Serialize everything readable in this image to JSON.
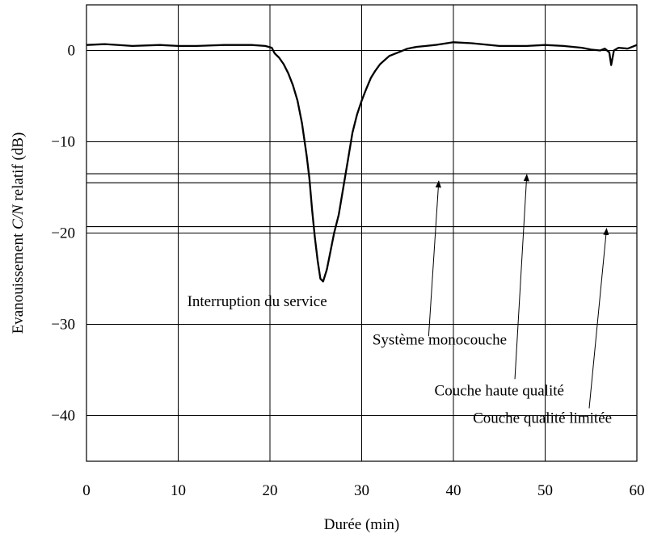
{
  "chart_data": {
    "type": "line",
    "xlabel": "Durée (min)",
    "ylabel_parts": [
      "Evanouissement ",
      "C/N",
      " relatif (dB)"
    ],
    "xlim": [
      0,
      60
    ],
    "ylim": [
      -45,
      5
    ],
    "x_ticks": [
      0,
      10,
      20,
      30,
      40,
      50,
      60
    ],
    "y_ticks": [
      0,
      -10,
      -20,
      -30,
      -40
    ],
    "x_tick_labels": [
      "0",
      "10",
      "20",
      "30",
      "40",
      "50",
      "60"
    ],
    "y_tick_labels": [
      "0",
      "−10",
      "−20",
      "−30",
      "−40"
    ],
    "grid": true,
    "series": [
      {
        "x": [
          0,
          2,
          5,
          8,
          10,
          12,
          15,
          18,
          19.5,
          20.2,
          20.5,
          21,
          21.5,
          22,
          22.5,
          23,
          23.5,
          24,
          24.3,
          24.6,
          24.9,
          25.2,
          25.5,
          25.8,
          26.2,
          26.6,
          27,
          27.5,
          28,
          28.5,
          29,
          29.5,
          30,
          30.5,
          31,
          31.5,
          32,
          33,
          34,
          35,
          36,
          37,
          38,
          40,
          42,
          45,
          48,
          50,
          52,
          54,
          55,
          56,
          56.5,
          57,
          57.2,
          57.5,
          58,
          59,
          60
        ],
        "y": [
          0.6,
          0.7,
          0.5,
          0.6,
          0.5,
          0.5,
          0.6,
          0.6,
          0.5,
          0.3,
          -0.3,
          -0.8,
          -1.5,
          -2.5,
          -3.8,
          -5.5,
          -8.0,
          -11.5,
          -14.0,
          -17.5,
          -20.5,
          -23.0,
          -25.0,
          -25.3,
          -24.0,
          -22.0,
          -20.0,
          -18.0,
          -15.0,
          -12.0,
          -9.0,
          -7.0,
          -5.5,
          -4.2,
          -3.0,
          -2.2,
          -1.5,
          -0.6,
          -0.2,
          0.2,
          0.4,
          0.5,
          0.6,
          0.9,
          0.8,
          0.5,
          0.5,
          0.6,
          0.5,
          0.3,
          0.1,
          0.0,
          0.2,
          -0.2,
          -1.6,
          0.0,
          0.3,
          0.2,
          0.6
        ]
      }
    ],
    "threshold_lines": [
      -13.5,
      -14.5,
      -19.3,
      -20.0
    ],
    "annotations": [
      {
        "text": "Interruption du service",
        "at": [
          18.6,
          -28.0
        ]
      },
      {
        "text": "Système monocouche",
        "at": [
          38.5,
          -32.2
        ],
        "arrow_from": [
          37.3,
          -31.3
        ],
        "arrow_to": [
          38.4,
          -14.3
        ]
      },
      {
        "text": "Couche haute qualité",
        "at": [
          45.0,
          -37.8
        ],
        "arrow_from": [
          46.7,
          -36.0
        ],
        "arrow_to": [
          48.0,
          -13.6
        ]
      },
      {
        "text": "Couche qualité limitée",
        "at": [
          49.7,
          -40.8
        ],
        "arrow_from": [
          54.8,
          -39.2
        ],
        "arrow_to": [
          56.7,
          -19.5
        ]
      }
    ]
  }
}
